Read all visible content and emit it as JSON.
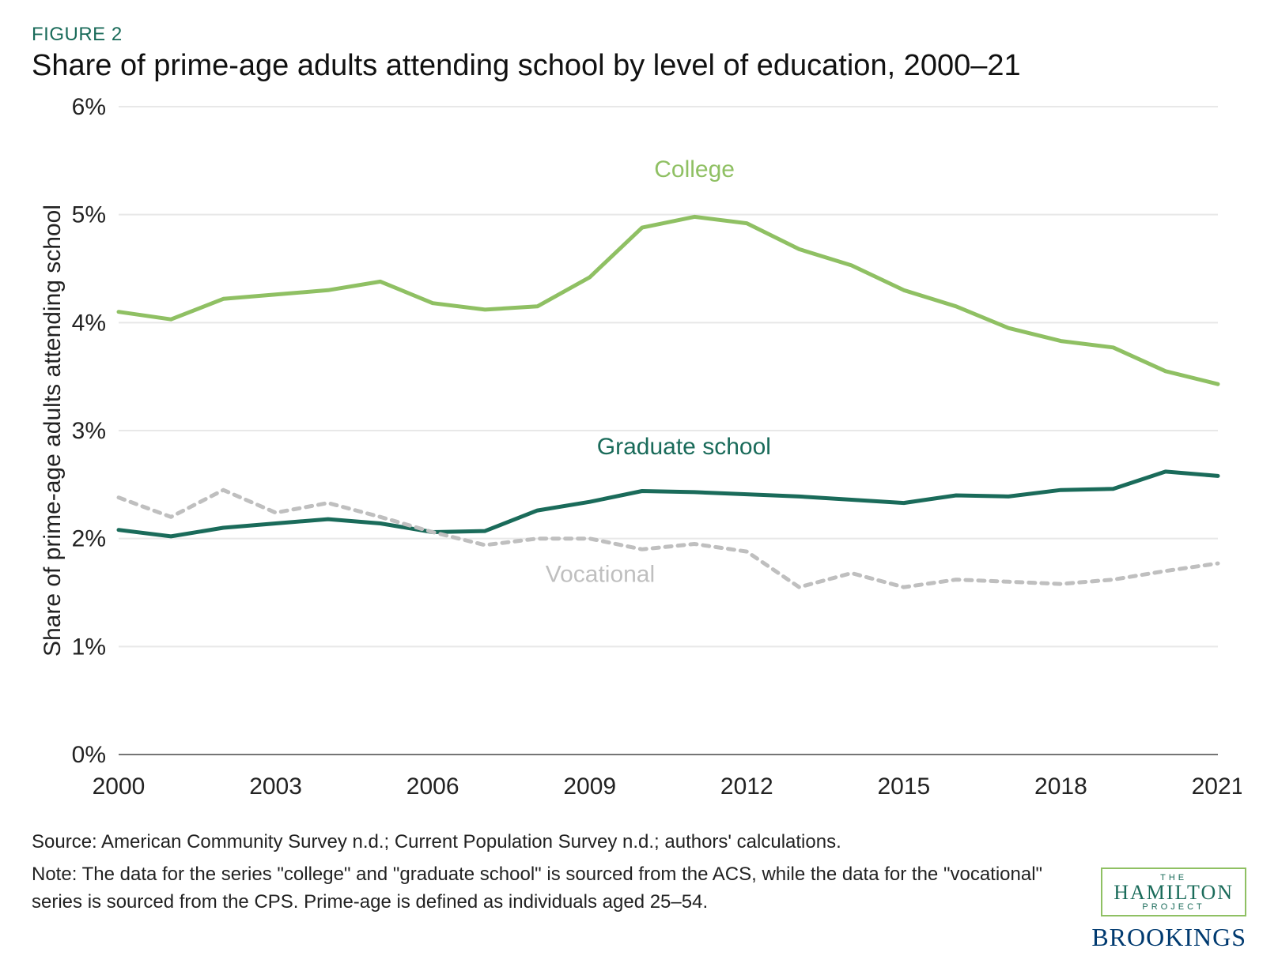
{
  "figure_label": "FIGURE 2",
  "title": "Share of prime-age adults attending school by level of education, 2000–21",
  "chart": {
    "type": "line",
    "background_color": "#ffffff",
    "grid_color": "#e8e8e8",
    "axis_color": "#757575",
    "axis_font_size": 30,
    "tick_font_size": 30,
    "tick_color": "#222222",
    "y_axis": {
      "label": "Share of prime-age adults attending school",
      "min": 0,
      "max": 6,
      "tick_step": 1,
      "ticks": [
        "0%",
        "1%",
        "2%",
        "3%",
        "4%",
        "5%",
        "6%"
      ]
    },
    "x_axis": {
      "min": 2000,
      "max": 2021,
      "ticks": [
        2000,
        2003,
        2006,
        2009,
        2012,
        2015,
        2018,
        2021
      ]
    },
    "series": [
      {
        "name": "College",
        "label": "College",
        "color": "#8fc063",
        "line_width": 5,
        "dash": "none",
        "label_x": 2011,
        "label_y": 5.35,
        "label_font_size": 30,
        "data": [
          [
            2000,
            4.1
          ],
          [
            2001,
            4.03
          ],
          [
            2002,
            4.22
          ],
          [
            2003,
            4.26
          ],
          [
            2004,
            4.3
          ],
          [
            2005,
            4.38
          ],
          [
            2006,
            4.18
          ],
          [
            2007,
            4.12
          ],
          [
            2008,
            4.15
          ],
          [
            2009,
            4.42
          ],
          [
            2010,
            4.88
          ],
          [
            2011,
            4.98
          ],
          [
            2012,
            4.92
          ],
          [
            2013,
            4.68
          ],
          [
            2014,
            4.53
          ],
          [
            2015,
            4.3
          ],
          [
            2016,
            4.15
          ],
          [
            2017,
            3.95
          ],
          [
            2018,
            3.83
          ],
          [
            2019,
            3.77
          ],
          [
            2020,
            3.55
          ],
          [
            2021,
            3.43
          ]
        ]
      },
      {
        "name": "Graduate school",
        "label": "Graduate school",
        "color": "#1a6b5a",
        "line_width": 5,
        "dash": "none",
        "label_x": 2010.8,
        "label_y": 2.78,
        "label_font_size": 30,
        "data": [
          [
            2000,
            2.08
          ],
          [
            2001,
            2.02
          ],
          [
            2002,
            2.1
          ],
          [
            2003,
            2.14
          ],
          [
            2004,
            2.18
          ],
          [
            2005,
            2.14
          ],
          [
            2006,
            2.06
          ],
          [
            2007,
            2.07
          ],
          [
            2008,
            2.26
          ],
          [
            2009,
            2.34
          ],
          [
            2010,
            2.44
          ],
          [
            2011,
            2.43
          ],
          [
            2012,
            2.41
          ],
          [
            2013,
            2.39
          ],
          [
            2014,
            2.36
          ],
          [
            2015,
            2.33
          ],
          [
            2016,
            2.4
          ],
          [
            2017,
            2.39
          ],
          [
            2018,
            2.45
          ],
          [
            2019,
            2.46
          ],
          [
            2020,
            2.62
          ],
          [
            2021,
            2.58
          ]
        ]
      },
      {
        "name": "Vocational",
        "label": "Vocational",
        "color": "#bfbfbf",
        "line_width": 5,
        "dash": "8,8",
        "label_x": 2009.2,
        "label_y": 1.6,
        "label_font_size": 30,
        "data": [
          [
            2000,
            2.38
          ],
          [
            2001,
            2.2
          ],
          [
            2002,
            2.45
          ],
          [
            2003,
            2.24
          ],
          [
            2004,
            2.33
          ],
          [
            2005,
            2.2
          ],
          [
            2006,
            2.06
          ],
          [
            2007,
            1.94
          ],
          [
            2008,
            2.0
          ],
          [
            2009,
            2.0
          ],
          [
            2010,
            1.9
          ],
          [
            2011,
            1.95
          ],
          [
            2012,
            1.88
          ],
          [
            2013,
            1.55
          ],
          [
            2014,
            1.68
          ],
          [
            2015,
            1.55
          ],
          [
            2016,
            1.62
          ],
          [
            2017,
            1.6
          ],
          [
            2018,
            1.58
          ],
          [
            2019,
            1.62
          ],
          [
            2020,
            1.7
          ],
          [
            2021,
            1.77
          ]
        ]
      }
    ]
  },
  "source_text": "Source: American Community Survey n.d.; Current Population Survey n.d.; authors' calculations.",
  "note_text": "Note: The data for the series \"college\" and \"graduate school\" is sourced from the ACS, while the data for the \"vocational\" series is sourced from the CPS. Prime-age is defined as individuals aged 25–54.",
  "logos": {
    "hamilton_the": "THE",
    "hamilton_main": "HAMILTON",
    "hamilton_project": "PROJECT",
    "brookings": "BROOKINGS"
  }
}
